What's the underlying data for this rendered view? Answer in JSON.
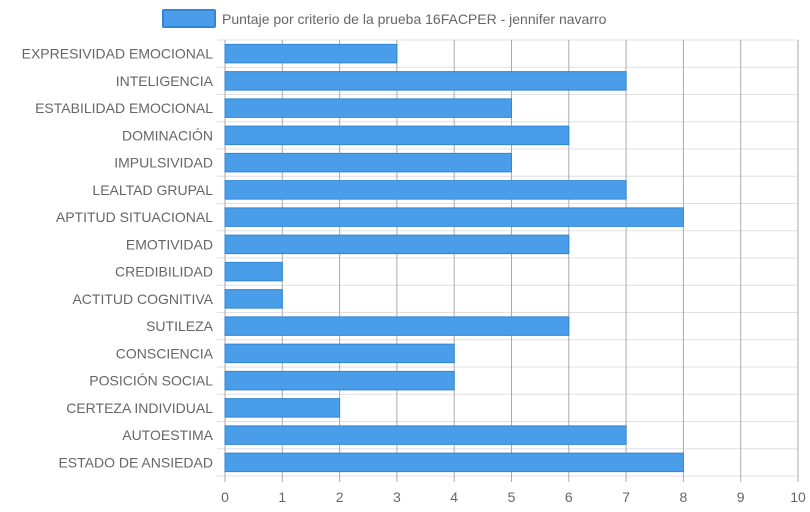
{
  "chart_data": {
    "type": "bar",
    "orientation": "horizontal",
    "legend": {
      "position": "top",
      "entries": [
        "Puntaje por criterio de la prueba 16FACPER - jennifer navarro"
      ]
    },
    "series": [
      {
        "name": "Puntaje por criterio de la prueba 16FACPER - jennifer navarro",
        "values": [
          3,
          7,
          5,
          6,
          5,
          7,
          8,
          6,
          1,
          1,
          6,
          4,
          4,
          2,
          7,
          8
        ]
      }
    ],
    "categories": [
      "EXPRESIVIDAD EMOCIONAL",
      "INTELIGENCIA",
      "ESTABILIDAD EMOCIONAL",
      "DOMINACIÓN",
      "IMPULSIVIDAD",
      "LEALTAD GRUPAL",
      "APTITUD SITUACIONAL",
      "EMOTIVIDAD",
      "CREDIBILIDAD",
      "ACTITUD COGNITIVA",
      "SUTILEZA",
      "CONSCIENCIA",
      "POSICIÓN SOCIAL",
      "CERTEZA INDIVIDUAL",
      "AUTOESTIMA",
      "ESTADO DE ANSIEDAD"
    ],
    "xlim": [
      0,
      10
    ],
    "xticks": [
      "0",
      "1",
      "2",
      "3",
      "4",
      "5",
      "6",
      "7",
      "8",
      "9",
      "10"
    ],
    "grid": true,
    "colors": {
      "bar_fill": "#4a9de8",
      "bar_stroke": "#2f86d6",
      "grid": "#e0e0e0",
      "major_grid": "#aaaaaa",
      "text": "#666666"
    }
  }
}
